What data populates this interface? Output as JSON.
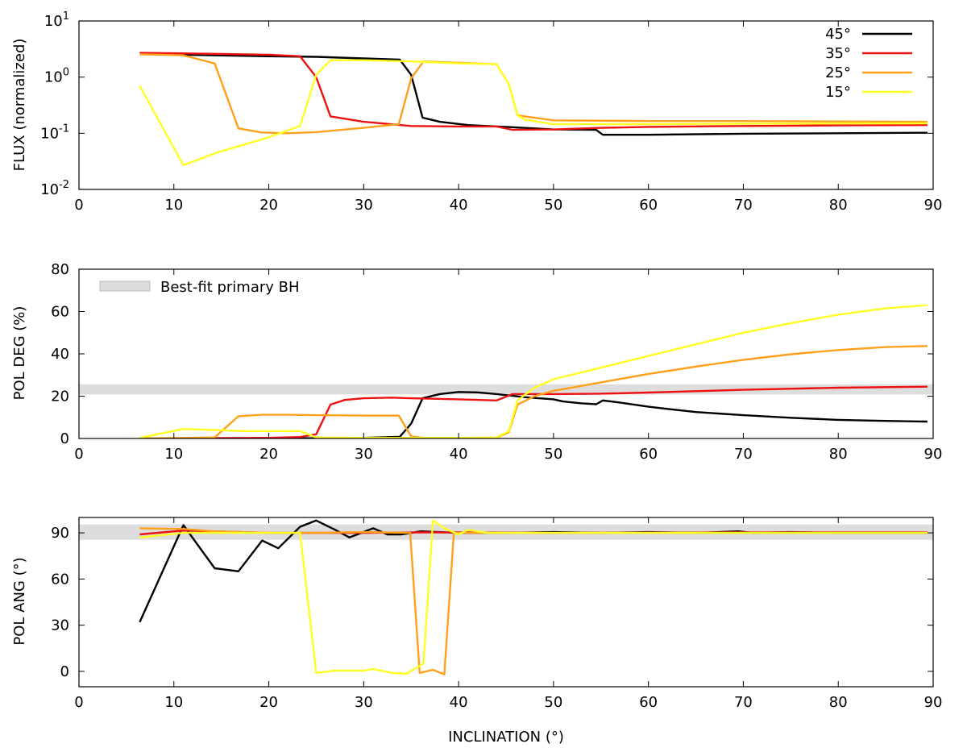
{
  "figure": {
    "xlabel": "INCLINATION (°)",
    "legend_items": [
      "45°",
      "35°",
      "25°",
      "15°"
    ],
    "band_label": "Best-fit primary BH"
  },
  "colors": {
    "45°": "#000000",
    "35°": "#ee1111",
    "25°": "#ff9f1a",
    "15°": "#ffff22",
    "band": "#dddddd"
  },
  "chart_data": [
    {
      "type": "line",
      "panel": "flux",
      "ylabel": "FLUX (normalized)",
      "yscale": "log",
      "xlim": [
        0,
        90
      ],
      "ylim": [
        0.01,
        10
      ],
      "xticks": [
        0,
        10,
        20,
        30,
        40,
        50,
        60,
        70,
        80,
        90
      ],
      "yticks": [
        {
          "value": 10,
          "base": "10",
          "exp": "1"
        },
        {
          "value": 1,
          "base": "10",
          "exp": "0"
        },
        {
          "value": 0.1,
          "base": "10",
          "exp": "-1"
        },
        {
          "value": 0.01,
          "base": "10",
          "exp": "-2"
        }
      ],
      "legend": "top-right",
      "series": [
        {
          "name": "45°",
          "points": [
            [
              6.4,
              2.6
            ],
            [
              11,
              2.5
            ],
            [
              20,
              2.35
            ],
            [
              25,
              2.3
            ],
            [
              30,
              2.15
            ],
            [
              33.8,
              2.05
            ],
            [
              35,
              1.1
            ],
            [
              36.2,
              0.19
            ],
            [
              38,
              0.16
            ],
            [
              41,
              0.14
            ],
            [
              45,
              0.13
            ],
            [
              50,
              0.117
            ],
            [
              54.5,
              0.115
            ],
            [
              55.2,
              0.094
            ],
            [
              60,
              0.094
            ],
            [
              70,
              0.098
            ],
            [
              80,
              0.1
            ],
            [
              89.4,
              0.102
            ]
          ]
        },
        {
          "name": "35°",
          "points": [
            [
              6.4,
              2.7
            ],
            [
              11,
              2.65
            ],
            [
              20,
              2.5
            ],
            [
              23.3,
              2.35
            ],
            [
              25,
              1.0
            ],
            [
              26.5,
              0.2
            ],
            [
              30,
              0.16
            ],
            [
              35,
              0.135
            ],
            [
              40,
              0.132
            ],
            [
              44,
              0.132
            ],
            [
              45.7,
              0.115
            ],
            [
              50,
              0.117
            ],
            [
              55,
              0.125
            ],
            [
              60,
              0.13
            ],
            [
              70,
              0.135
            ],
            [
              80,
              0.138
            ],
            [
              89.4,
              0.14
            ]
          ]
        },
        {
          "name": "25°",
          "points": [
            [
              6.4,
              2.55
            ],
            [
              11,
              2.45
            ],
            [
              14.3,
              1.75
            ],
            [
              16.8,
              0.122
            ],
            [
              19.3,
              0.103
            ],
            [
              22,
              0.1
            ],
            [
              25,
              0.105
            ],
            [
              30,
              0.125
            ],
            [
              33.7,
              0.145
            ],
            [
              35,
              0.95
            ],
            [
              36.3,
              1.9
            ],
            [
              40,
              1.8
            ],
            [
              44,
              1.7
            ],
            [
              45.3,
              0.75
            ],
            [
              46.2,
              0.21
            ],
            [
              47,
              0.2
            ],
            [
              50,
              0.17
            ],
            [
              60,
              0.165
            ],
            [
              70,
              0.165
            ],
            [
              80,
              0.162
            ],
            [
              89.4,
              0.16
            ]
          ]
        },
        {
          "name": "15°",
          "points": [
            [
              6.4,
              0.7
            ],
            [
              11,
              0.027
            ],
            [
              14.5,
              0.045
            ],
            [
              20,
              0.085
            ],
            [
              23.3,
              0.135
            ],
            [
              25,
              1.1
            ],
            [
              26.5,
              2.0
            ],
            [
              30,
              2.0
            ],
            [
              35,
              1.9
            ],
            [
              40,
              1.75
            ],
            [
              44,
              1.7
            ],
            [
              45.3,
              0.75
            ],
            [
              46.2,
              0.21
            ],
            [
              47,
              0.175
            ],
            [
              50,
              0.145
            ],
            [
              60,
              0.145
            ],
            [
              70,
              0.148
            ],
            [
              80,
              0.15
            ],
            [
              89.4,
              0.15
            ]
          ]
        }
      ]
    },
    {
      "type": "line",
      "panel": "pol_deg",
      "ylabel": "POL DEG (%)",
      "yscale": "linear",
      "xlim": [
        0,
        90
      ],
      "ylim": [
        0,
        80
      ],
      "xticks": [
        0,
        10,
        20,
        30,
        40,
        50,
        60,
        70,
        80,
        90
      ],
      "yticks": [
        0,
        20,
        40,
        60,
        80
      ],
      "band": [
        20.8,
        25.6
      ],
      "legend": "top-left",
      "series": [
        {
          "name": "45°",
          "points": [
            [
              6.4,
              0
            ],
            [
              20,
              0
            ],
            [
              30,
              0.3
            ],
            [
              33.8,
              0.8
            ],
            [
              35,
              7
            ],
            [
              36.2,
              19
            ],
            [
              38,
              21
            ],
            [
              40,
              22
            ],
            [
              42,
              21.8
            ],
            [
              44,
              21
            ],
            [
              47,
              19.5
            ],
            [
              50,
              18.5
            ],
            [
              51,
              17.5
            ],
            [
              53,
              16.6
            ],
            [
              54.5,
              16.2
            ],
            [
              55.2,
              18
            ],
            [
              57,
              17
            ],
            [
              60,
              15
            ],
            [
              62,
              14
            ],
            [
              65,
              12.5
            ],
            [
              70,
              11
            ],
            [
              75,
              9.8
            ],
            [
              80,
              8.8
            ],
            [
              85,
              8.3
            ],
            [
              89.4,
              8
            ]
          ]
        },
        {
          "name": "35°",
          "points": [
            [
              6.4,
              0
            ],
            [
              20,
              0.3
            ],
            [
              23.3,
              0.7
            ],
            [
              25,
              2
            ],
            [
              26.5,
              16
            ],
            [
              28,
              18.2
            ],
            [
              30,
              19
            ],
            [
              33,
              19.3
            ],
            [
              35,
              19
            ],
            [
              40,
              18.5
            ],
            [
              44,
              18
            ],
            [
              45.7,
              21
            ],
            [
              50,
              21
            ],
            [
              55,
              21.2
            ],
            [
              60,
              21.7
            ],
            [
              70,
              23
            ],
            [
              80,
              24
            ],
            [
              89.4,
              24.5
            ]
          ]
        },
        {
          "name": "25°",
          "points": [
            [
              6.4,
              0
            ],
            [
              14.3,
              0.5
            ],
            [
              16.8,
              10.5
            ],
            [
              19.3,
              11.2
            ],
            [
              22,
              11.2
            ],
            [
              25,
              11
            ],
            [
              30,
              10.8
            ],
            [
              33.7,
              10.8
            ],
            [
              35,
              1
            ],
            [
              36.3,
              0.3
            ],
            [
              44,
              0.3
            ],
            [
              45.3,
              3
            ],
            [
              46.2,
              16
            ],
            [
              48,
              20
            ],
            [
              50,
              22.5
            ],
            [
              55,
              26.5
            ],
            [
              60,
              30.5
            ],
            [
              65,
              34
            ],
            [
              70,
              37.2
            ],
            [
              75,
              39.8
            ],
            [
              80,
              41.8
            ],
            [
              85,
              43.2
            ],
            [
              89.4,
              43.7
            ]
          ]
        },
        {
          "name": "15°",
          "points": [
            [
              6.4,
              0.3
            ],
            [
              11,
              4.5
            ],
            [
              14.5,
              4
            ],
            [
              17,
              3.5
            ],
            [
              20,
              3.5
            ],
            [
              23.3,
              3.5
            ],
            [
              25,
              0.5
            ],
            [
              30,
              0.3
            ],
            [
              35,
              0.3
            ],
            [
              40,
              0.3
            ],
            [
              44,
              0.5
            ],
            [
              45.3,
              3.5
            ],
            [
              46.2,
              18
            ],
            [
              48,
              24
            ],
            [
              50,
              28
            ],
            [
              55,
              33.5
            ],
            [
              60,
              39
            ],
            [
              65,
              44.5
            ],
            [
              70,
              50
            ],
            [
              75,
              54.5
            ],
            [
              80,
              58.5
            ],
            [
              85,
              61.5
            ],
            [
              89.4,
              63
            ]
          ]
        }
      ]
    },
    {
      "type": "line",
      "panel": "pol_ang",
      "ylabel": "POL ANG (°)",
      "yscale": "linear",
      "xlim": [
        0,
        90
      ],
      "ylim": [
        -10,
        100
      ],
      "xticks": [
        0,
        10,
        20,
        30,
        40,
        50,
        60,
        70,
        80,
        90
      ],
      "yticks": [
        0,
        30,
        60,
        90
      ],
      "band": [
        85.5,
        95.5
      ],
      "series": [
        {
          "name": "45°",
          "points": [
            [
              6.4,
              32
            ],
            [
              11,
              95
            ],
            [
              14.3,
              67
            ],
            [
              16.8,
              65
            ],
            [
              19.3,
              85
            ],
            [
              21,
              80
            ],
            [
              23.3,
              94
            ],
            [
              25,
              98
            ],
            [
              27,
              92
            ],
            [
              28.5,
              87
            ],
            [
              31,
              93
            ],
            [
              32.5,
              89
            ],
            [
              34,
              89
            ],
            [
              36,
              91
            ],
            [
              40,
              90
            ],
            [
              45,
              90
            ],
            [
              50,
              90.5
            ],
            [
              55,
              90
            ],
            [
              60,
              90.5
            ],
            [
              65,
              90
            ],
            [
              69.5,
              91
            ],
            [
              71,
              90
            ],
            [
              75,
              90.5
            ],
            [
              80,
              90
            ],
            [
              85,
              90
            ],
            [
              89.4,
              90
            ]
          ]
        },
        {
          "name": "35°",
          "points": [
            [
              6.4,
              89
            ],
            [
              11,
              91.5
            ],
            [
              14.3,
              91
            ],
            [
              20,
              90
            ],
            [
              25,
              90
            ],
            [
              30,
              90
            ],
            [
              36,
              90.3
            ],
            [
              40,
              90.3
            ],
            [
              45,
              90.2
            ],
            [
              50,
              90
            ],
            [
              60,
              90.2
            ],
            [
              70,
              90.3
            ],
            [
              80,
              90.3
            ],
            [
              89.4,
              90.3
            ]
          ]
        },
        {
          "name": "25°",
          "points": [
            [
              6.4,
              93
            ],
            [
              11,
              92.5
            ],
            [
              14.3,
              91
            ],
            [
              20,
              90
            ],
            [
              25,
              90
            ],
            [
              30,
              90.5
            ],
            [
              34.9,
              90
            ],
            [
              35.9,
              -1
            ],
            [
              37.3,
              1
            ],
            [
              38.5,
              -2
            ],
            [
              39.5,
              90
            ],
            [
              45,
              90
            ],
            [
              50,
              90
            ],
            [
              60,
              90
            ],
            [
              70,
              90
            ],
            [
              80,
              90
            ],
            [
              89.4,
              90
            ]
          ]
        },
        {
          "name": "15°",
          "points": [
            [
              6.4,
              87
            ],
            [
              11,
              90
            ],
            [
              14.5,
              90
            ],
            [
              20,
              90
            ],
            [
              23.3,
              90
            ],
            [
              25,
              -1
            ],
            [
              27,
              0.5
            ],
            [
              30,
              0.5
            ],
            [
              31,
              1.5
            ],
            [
              33,
              -1
            ],
            [
              34.5,
              -1.5
            ],
            [
              36.3,
              5
            ],
            [
              37.3,
              98
            ],
            [
              38.5,
              93
            ],
            [
              40,
              89
            ],
            [
              41,
              92
            ],
            [
              43,
              90
            ],
            [
              50,
              90
            ],
            [
              60,
              90
            ],
            [
              70,
              90
            ],
            [
              80,
              90
            ],
            [
              89.4,
              90
            ]
          ]
        }
      ]
    }
  ]
}
